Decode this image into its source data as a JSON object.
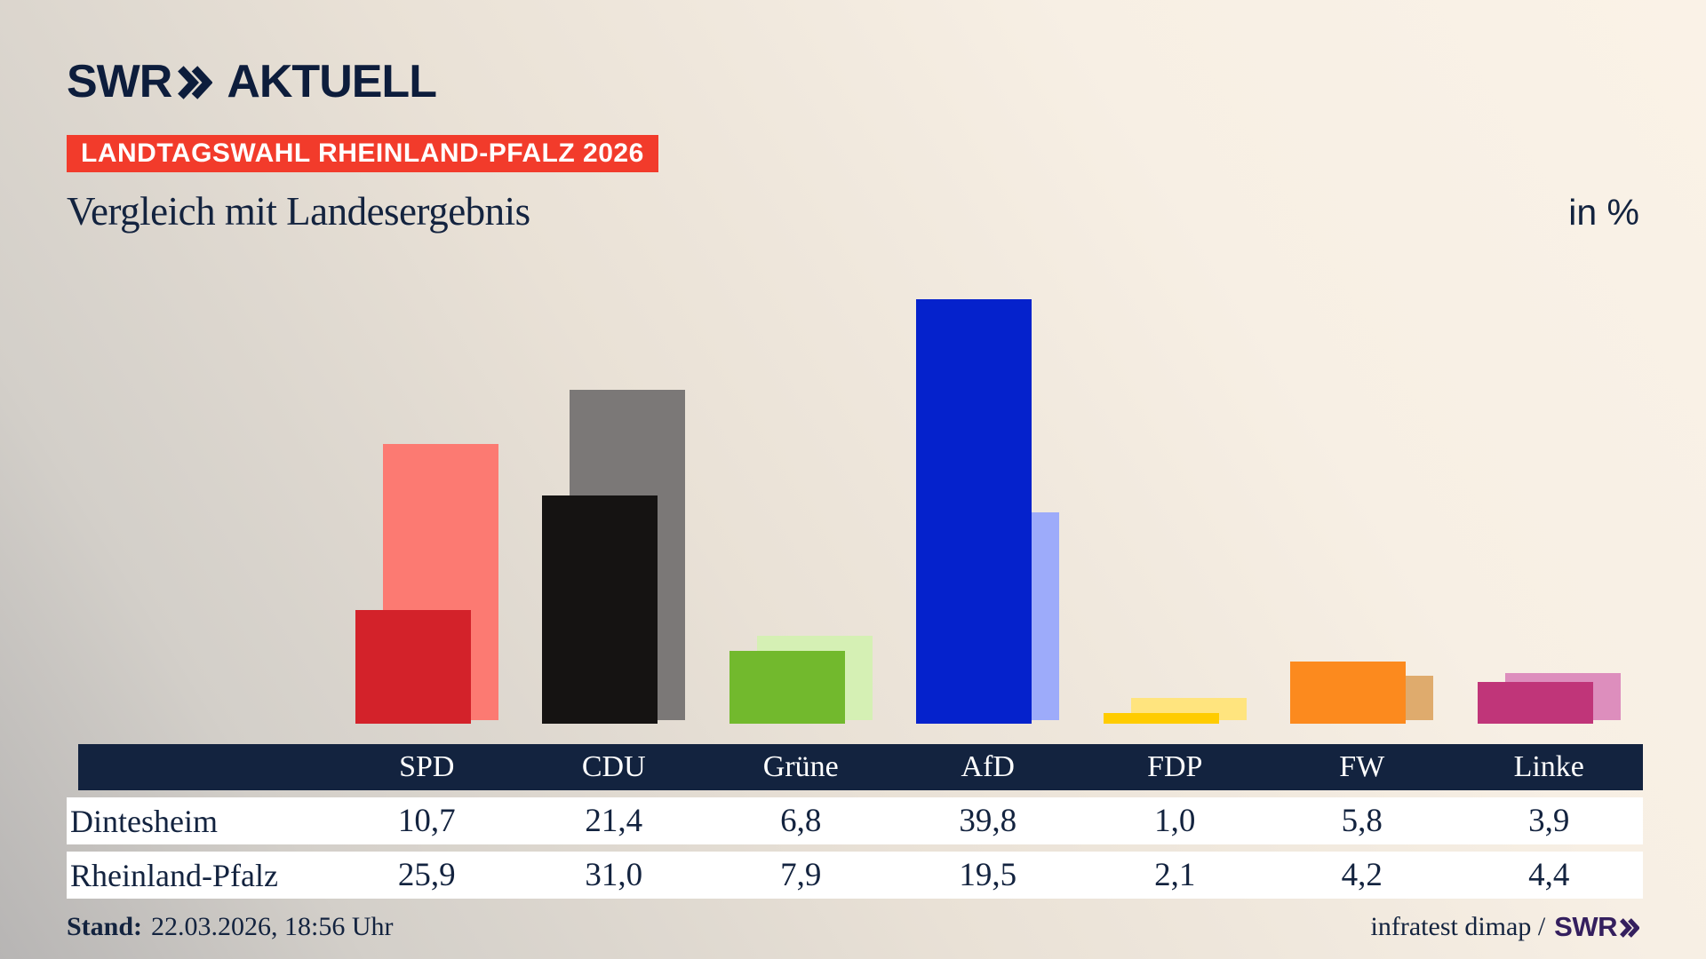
{
  "brand": {
    "name": "SWR",
    "suffix": "AKTUELL"
  },
  "header": {
    "badge": "LANDTAGSWAHL RHEINLAND-PFALZ 2026",
    "subtitle": "Vergleich mit Landesergebnis",
    "unit_label": "in %"
  },
  "chart_data": {
    "type": "bar",
    "categories": [
      "SPD",
      "CDU",
      "Grüne",
      "AfD",
      "FDP",
      "FW",
      "Linke"
    ],
    "series": [
      {
        "name": "Dintesheim",
        "values": [
          10.7,
          21.4,
          6.8,
          39.8,
          1.0,
          5.8,
          3.9
        ]
      },
      {
        "name": "Rheinland-Pfalz",
        "values": [
          25.9,
          31.0,
          7.9,
          19.5,
          2.1,
          4.2,
          4.4
        ]
      }
    ],
    "colors": {
      "dintesheim": [
        "#d3222a",
        "#151312",
        "#72b92d",
        "#0522cc",
        "#ffcc00",
        "#fc8a1e",
        "#c03579"
      ],
      "rheinland_pfalz": [
        "#fc7a72",
        "#7b7877",
        "#d5f0b4",
        "#9dabfa",
        "#ffe47e",
        "#dfab6d",
        "#dd8ebd"
      ]
    },
    "unit": "%",
    "ylim": [
      0,
      45
    ],
    "grid": false,
    "legend_position": "table-below",
    "title": "Vergleich mit Landesergebnis"
  },
  "table": {
    "columns": [
      "SPD",
      "CDU",
      "Grüne",
      "AfD",
      "FDP",
      "FW",
      "Linke"
    ],
    "rows": [
      {
        "label": "Dintesheim",
        "values": [
          "10,7",
          "21,4",
          "6,8",
          "39,8",
          "1,0",
          "5,8",
          "3,9"
        ]
      },
      {
        "label": "Rheinland-Pfalz",
        "values": [
          "25,9",
          "31,0",
          "7,9",
          "19,5",
          "2,1",
          "4,2",
          "4,4"
        ]
      }
    ]
  },
  "footer": {
    "stand_label": "Stand:",
    "stand_value": "22.03.2026, 18:56 Uhr",
    "source_text": "infratest dimap /",
    "source_brand": "SWR"
  },
  "theme": {
    "navy": "#13233f",
    "badge_red": "#f23b2b",
    "brand_purple": "#341f5e",
    "background_cream": "#f7efe4",
    "background_gray": "#b7b5b4"
  }
}
